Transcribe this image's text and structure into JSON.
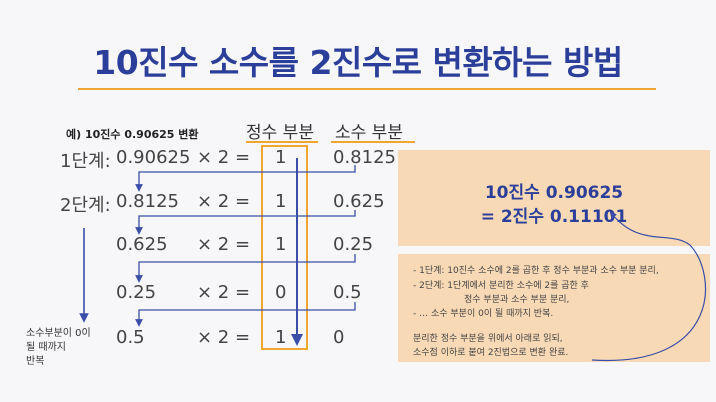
{
  "title": "10진수 소수를 2진수로 변환하는 방법",
  "example": "예) 10진수 0.90625  변환",
  "columns": {
    "integer": "정수 부분",
    "fraction": "소수 부분"
  },
  "steps": [
    {
      "label": "1단계:",
      "value": "0.90625",
      "op": "× 2 =",
      "integer": "1",
      "fraction": "0.8125"
    },
    {
      "label": "2단계:",
      "value": "0.8125",
      "op": "× 2 =",
      "integer": "1",
      "fraction": "0.625"
    },
    {
      "label": "",
      "value": "0.625",
      "op": "× 2 =",
      "integer": "1",
      "fraction": "0.25"
    },
    {
      "label": "",
      "value": "0.25",
      "op": "× 2 =",
      "integer": "0",
      "fraction": "0.5"
    },
    {
      "label": "",
      "value": "0.5",
      "op": "× 2 =",
      "integer": "1",
      "fraction": "0"
    }
  ],
  "repeat_note": [
    "소수부분이 0이",
    "될 때까지",
    "반복"
  ],
  "result": {
    "line1": "10진수 0.90625",
    "line2": "= 2진수 0.11101"
  },
  "notes": [
    "- 1단계: 10진수 소수에 2를 곱한 후 정수 부분과 소수 부분 분리,",
    "- 2단계: 1단계에서 분리한 소수에 2를 곱한 후",
    "정수 부분과 소수 부분 분리,",
    "- … 소수 부분이 0이 될 때까지 반복.",
    "분리한 정수 부분을 위에서 아래로 읽되,",
    "소수점 이하로 붙여 2진법으로 변환 완료."
  ],
  "colors": {
    "title": "#2b3f9a",
    "accent": "#f0a630",
    "box": "#f7d9b6",
    "arrow": "#3b4fa8"
  }
}
